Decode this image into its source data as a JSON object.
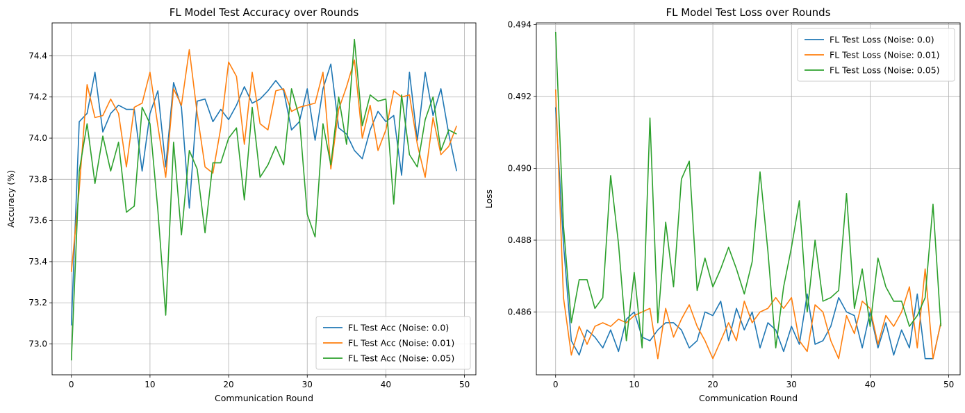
{
  "chart_data": [
    {
      "type": "line",
      "title": "FL Model Test Accuracy over Rounds",
      "xlabel": "Communication Round",
      "ylabel": "Accuracy (%)",
      "xlim": [
        -2.45,
        51.45
      ],
      "ylim": [
        72.85,
        74.56
      ],
      "xticks": [
        0,
        10,
        20,
        30,
        40,
        50
      ],
      "yticks": [
        73.0,
        73.2,
        73.4,
        73.6,
        73.8,
        74.0,
        74.2,
        74.4
      ],
      "grid": true,
      "legend_position": "lower-right",
      "x": [
        0,
        1,
        2,
        3,
        4,
        5,
        6,
        7,
        8,
        9,
        10,
        11,
        12,
        13,
        14,
        15,
        16,
        17,
        18,
        19,
        20,
        21,
        22,
        23,
        24,
        25,
        26,
        27,
        28,
        29,
        30,
        31,
        32,
        33,
        34,
        35,
        36,
        37,
        38,
        39,
        40,
        41,
        42,
        43,
        44,
        45,
        46,
        47,
        48,
        49
      ],
      "series": [
        {
          "name": "FL Test Acc (Noise: 0.0)",
          "color": "#1f77b4",
          "values": [
            73.09,
            74.08,
            74.12,
            74.32,
            74.03,
            74.12,
            74.16,
            74.14,
            74.14,
            73.84,
            74.12,
            74.23,
            73.86,
            74.27,
            74.15,
            73.66,
            74.18,
            74.19,
            74.08,
            74.14,
            74.09,
            74.16,
            74.25,
            74.17,
            74.19,
            74.23,
            74.28,
            74.23,
            74.04,
            74.08,
            74.24,
            73.99,
            74.24,
            74.36,
            74.05,
            74.02,
            73.94,
            73.9,
            74.04,
            74.13,
            74.08,
            74.11,
            73.82,
            74.32,
            73.99,
            74.32,
            74.11,
            74.24,
            74.02,
            73.84
          ]
        },
        {
          "name": "FL Test Acc (Noise: 0.01)",
          "color": "#ff7f0e",
          "values": [
            73.35,
            73.75,
            74.26,
            74.1,
            74.11,
            74.19,
            74.12,
            73.86,
            74.15,
            74.17,
            74.32,
            74.06,
            73.81,
            74.24,
            74.16,
            74.43,
            74.12,
            73.86,
            73.83,
            74.05,
            74.37,
            74.3,
            73.97,
            74.32,
            74.07,
            74.04,
            74.23,
            74.24,
            74.13,
            74.15,
            74.16,
            74.17,
            74.32,
            73.85,
            74.14,
            74.25,
            74.38,
            74.0,
            74.16,
            73.94,
            74.04,
            74.23,
            74.2,
            74.21,
            73.97,
            73.81,
            74.1,
            73.92,
            73.96,
            74.06
          ]
        },
        {
          "name": "FL Test Acc (Noise: 0.05)",
          "color": "#2ca02c",
          "values": [
            72.92,
            73.84,
            74.07,
            73.78,
            74.01,
            73.84,
            73.98,
            73.64,
            73.67,
            74.15,
            74.07,
            73.65,
            73.14,
            73.98,
            73.53,
            73.94,
            73.85,
            73.54,
            73.88,
            73.88,
            74.0,
            74.05,
            73.7,
            74.15,
            73.81,
            73.87,
            73.96,
            73.87,
            74.24,
            74.1,
            73.63,
            73.52,
            74.07,
            73.87,
            74.2,
            73.97,
            74.48,
            74.06,
            74.21,
            74.18,
            74.19,
            73.68,
            74.21,
            73.92,
            73.86,
            74.09,
            74.2,
            73.94,
            74.04,
            74.02
          ]
        }
      ]
    },
    {
      "type": "line",
      "title": "FL Model Test Loss over Rounds",
      "xlabel": "Communication Round",
      "ylabel": "Loss",
      "xlim": [
        -2.45,
        51.45
      ],
      "ylim": [
        0.48425,
        0.49405
      ],
      "xticks": [
        0,
        10,
        20,
        30,
        40,
        50
      ],
      "yticks": [
        0.486,
        0.488,
        0.49,
        0.492,
        0.494
      ],
      "grid": true,
      "legend_position": "top-right",
      "x": [
        0,
        1,
        2,
        3,
        4,
        5,
        6,
        7,
        8,
        9,
        10,
        11,
        12,
        13,
        14,
        15,
        16,
        17,
        18,
        19,
        20,
        21,
        22,
        23,
        24,
        25,
        26,
        27,
        28,
        29,
        30,
        31,
        32,
        33,
        34,
        35,
        36,
        37,
        38,
        39,
        40,
        41,
        42,
        43,
        44,
        45,
        46,
        47,
        48,
        49
      ],
      "series": [
        {
          "name": "FL Test Loss (Noise: 0.0)",
          "color": "#1f77b4",
          "values": [
            0.4917,
            0.4879,
            0.4852,
            0.4848,
            0.4855,
            0.4853,
            0.485,
            0.4855,
            0.4849,
            0.4858,
            0.486,
            0.4853,
            0.4852,
            0.4855,
            0.4857,
            0.4857,
            0.4855,
            0.485,
            0.4852,
            0.486,
            0.4859,
            0.4863,
            0.4852,
            0.4861,
            0.4855,
            0.486,
            0.485,
            0.4857,
            0.4855,
            0.4849,
            0.4856,
            0.4851,
            0.4865,
            0.4851,
            0.4852,
            0.4856,
            0.4864,
            0.486,
            0.4859,
            0.485,
            0.486,
            0.485,
            0.4857,
            0.4848,
            0.4855,
            0.485,
            0.4865,
            0.4847,
            0.4847,
            0.4857
          ]
        },
        {
          "name": "FL Test Loss (Noise: 0.01)",
          "color": "#ff7f0e",
          "values": [
            0.4922,
            0.4864,
            0.4848,
            0.4856,
            0.4851,
            0.4856,
            0.4857,
            0.4856,
            0.4858,
            0.4857,
            0.4859,
            0.486,
            0.4861,
            0.4847,
            0.4861,
            0.4853,
            0.4858,
            0.4862,
            0.4856,
            0.4852,
            0.4847,
            0.4852,
            0.4857,
            0.4852,
            0.4863,
            0.4857,
            0.486,
            0.4861,
            0.4864,
            0.4861,
            0.4864,
            0.4852,
            0.4849,
            0.4862,
            0.486,
            0.4852,
            0.4847,
            0.4859,
            0.4854,
            0.4863,
            0.4861,
            0.4851,
            0.4859,
            0.4856,
            0.486,
            0.4867,
            0.485,
            0.4872,
            0.4847,
            0.4857
          ]
        },
        {
          "name": "FL Test Loss (Noise: 0.05)",
          "color": "#2ca02c",
          "values": [
            0.4938,
            0.4884,
            0.4857,
            0.4869,
            0.4869,
            0.4861,
            0.4864,
            0.4898,
            0.4879,
            0.4852,
            0.4871,
            0.485,
            0.4914,
            0.4857,
            0.4885,
            0.4867,
            0.4897,
            0.4902,
            0.4866,
            0.4875,
            0.4867,
            0.4872,
            0.4878,
            0.4872,
            0.4865,
            0.4874,
            0.4899,
            0.4877,
            0.485,
            0.4867,
            0.4878,
            0.4891,
            0.486,
            0.488,
            0.4863,
            0.4864,
            0.4866,
            0.4893,
            0.4861,
            0.4872,
            0.4856,
            0.4875,
            0.4867,
            0.4863,
            0.4863,
            0.4856,
            0.4859,
            0.4864,
            0.489,
            0.4856
          ]
        }
      ]
    }
  ]
}
